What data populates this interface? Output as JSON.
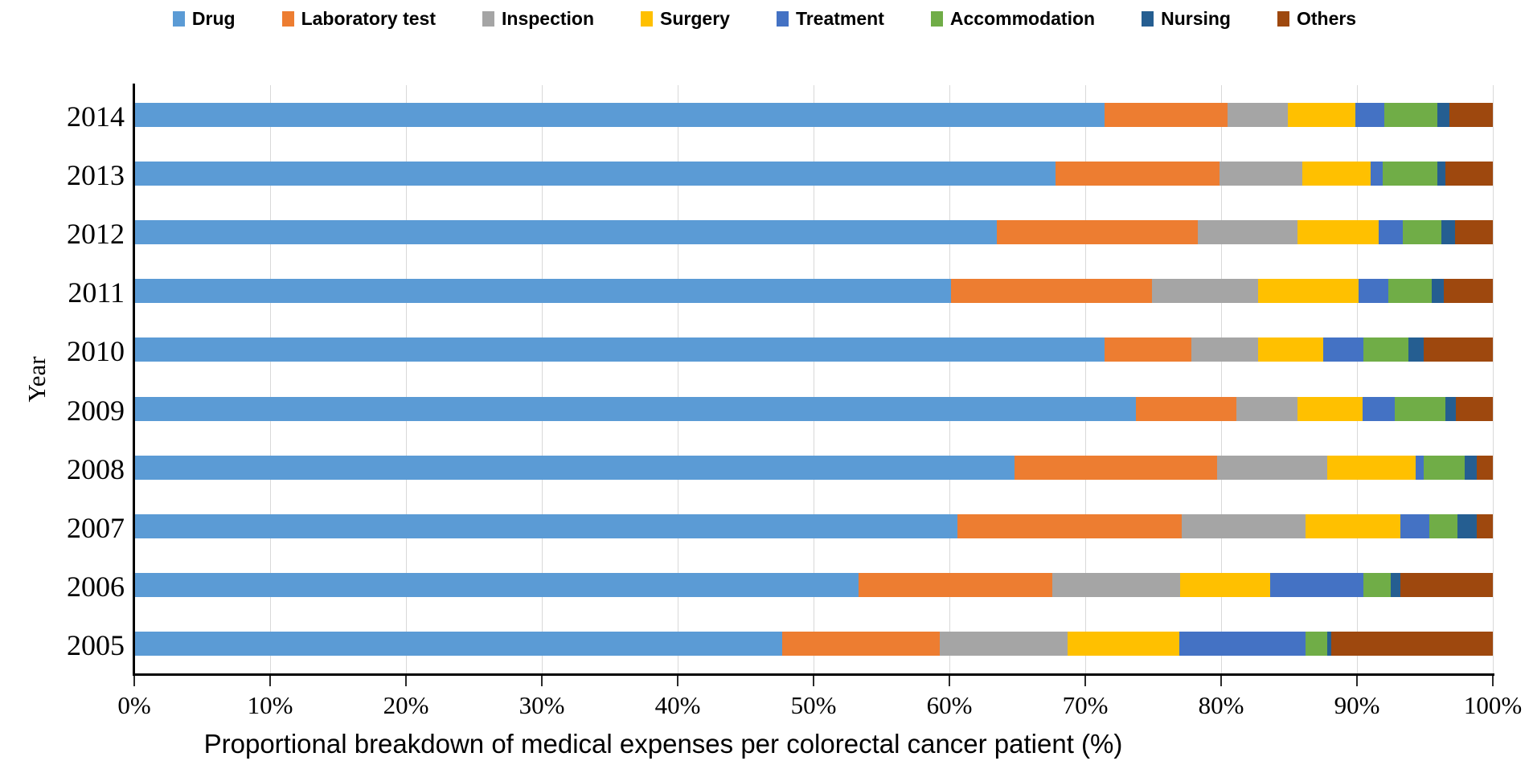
{
  "chart_data": {
    "type": "bar",
    "variant": "horizontal-stacked-100",
    "title": "",
    "xlabel": "Proportional breakdown of medical expenses per colorectal cancer patient (%)",
    "ylabel": "Year",
    "xlim": [
      0,
      100
    ],
    "x_ticks": [
      "0%",
      "10%",
      "20%",
      "30%",
      "40%",
      "50%",
      "60%",
      "70%",
      "80%",
      "90%",
      "100%"
    ],
    "grid": "vertical-major-only",
    "legend_position": "top-center",
    "categories": [
      "2014",
      "2013",
      "2012",
      "2011",
      "2010",
      "2009",
      "2008",
      "2007",
      "2006",
      "2005"
    ],
    "series": [
      {
        "name": "Drug",
        "color": "#5B9BD5",
        "values": [
          71.4,
          67.8,
          63.5,
          60.1,
          71.4,
          73.7,
          64.8,
          60.6,
          53.3,
          47.7
        ]
      },
      {
        "name": "Laboratory test",
        "color": "#ED7D31",
        "values": [
          9.1,
          12.1,
          14.8,
          14.8,
          6.4,
          7.4,
          14.9,
          16.5,
          14.3,
          11.6
        ]
      },
      {
        "name": "Inspection",
        "color": "#A5A5A5",
        "values": [
          4.4,
          6.1,
          7.3,
          7.8,
          4.9,
          4.5,
          8.1,
          9.1,
          9.4,
          9.4
        ]
      },
      {
        "name": "Surgery",
        "color": "#FFC000",
        "values": [
          5.0,
          5.0,
          6.0,
          7.4,
          4.8,
          4.8,
          6.5,
          7.0,
          6.6,
          8.2
        ]
      },
      {
        "name": "Treatment",
        "color": "#4472C4",
        "values": [
          2.1,
          0.9,
          1.8,
          2.2,
          3.0,
          2.4,
          0.6,
          2.1,
          6.9,
          9.3
        ]
      },
      {
        "name": "Accommodation",
        "color": "#70AD47",
        "values": [
          3.9,
          4.0,
          2.8,
          3.2,
          3.3,
          3.7,
          3.0,
          2.1,
          2.0,
          1.6
        ]
      },
      {
        "name": "Nursing",
        "color": "#255E91",
        "values": [
          0.9,
          0.6,
          1.0,
          0.9,
          1.1,
          0.8,
          0.9,
          1.4,
          0.7,
          0.3
        ]
      },
      {
        "name": "Others",
        "color": "#9E480E",
        "values": [
          3.2,
          3.5,
          2.8,
          3.6,
          5.1,
          2.7,
          1.2,
          1.2,
          6.8,
          11.9
        ]
      }
    ],
    "colors": {
      "axis_line": "#000000",
      "gridline": "#d9d9d9",
      "background": "#ffffff"
    }
  }
}
